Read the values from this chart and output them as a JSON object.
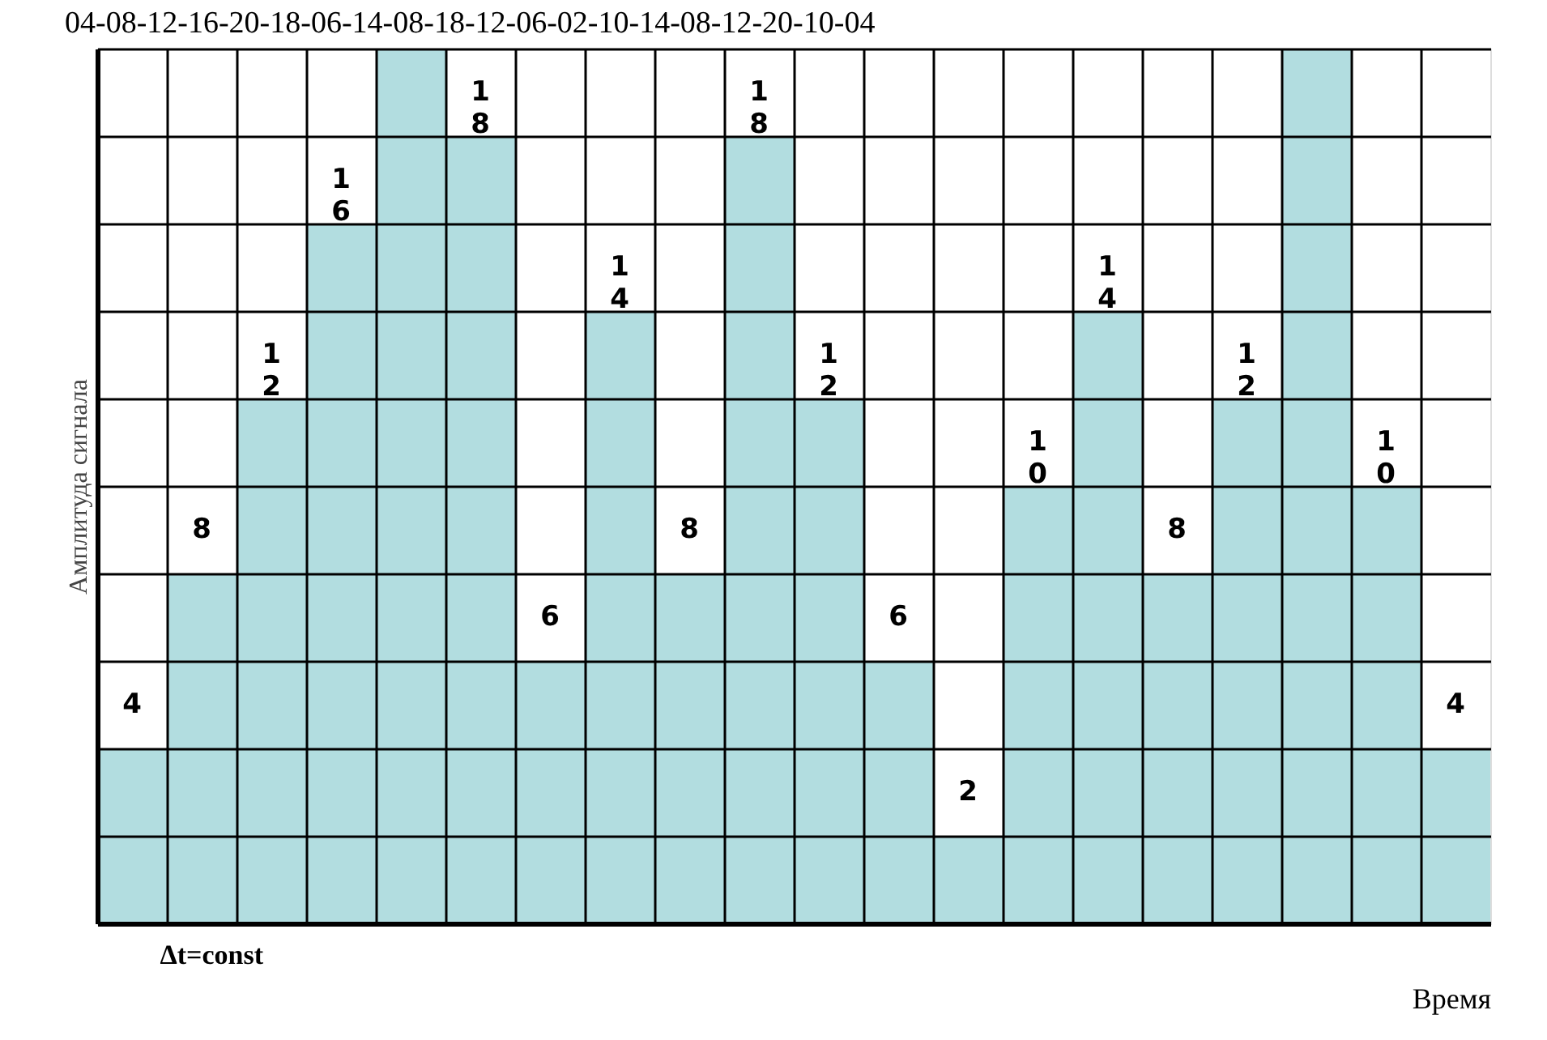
{
  "chart_data": {
    "type": "bar",
    "title": "04-08-12-16-20-18-06-14-08-18-12-06-02-10-14-08-12-20-10-04",
    "xlabel": "Время",
    "ylabel": "Амплитуда сигнала",
    "categories": [
      null,
      null,
      null,
      null,
      null,
      null,
      null,
      null,
      null,
      null,
      null,
      null,
      null,
      null,
      null,
      null,
      null,
      null,
      null,
      null
    ],
    "values": [
      4,
      8,
      12,
      16,
      20,
      18,
      6,
      14,
      8,
      18,
      12,
      6,
      2,
      10,
      14,
      8,
      12,
      20,
      10,
      4
    ],
    "value_labels": [
      "4",
      "8",
      "12",
      "16",
      null,
      "18",
      "6",
      "14",
      "8",
      "18",
      "12",
      "6",
      "2",
      "10",
      "14",
      "8",
      "12",
      null,
      "10",
      "4"
    ],
    "color": "#b2dde0",
    "ylim": [
      0,
      20
    ],
    "yticks": [
      {
        "value": 0,
        "label": null
      },
      {
        "value": 2,
        "label": null
      },
      {
        "value": 4,
        "label": null
      },
      {
        "value": 6,
        "label": null
      },
      {
        "value": 8,
        "label": null
      },
      {
        "value": 10,
        "label": null
      },
      {
        "value": 12,
        "label": null
      },
      {
        "value": 14,
        "label": null
      },
      {
        "value": 16,
        "label": null
      },
      {
        "value": 18,
        "label": null
      },
      {
        "value": 20,
        "label": null
      }
    ],
    "grid": true,
    "tick_labels": false,
    "annotations": [
      "Δt=const"
    ]
  }
}
